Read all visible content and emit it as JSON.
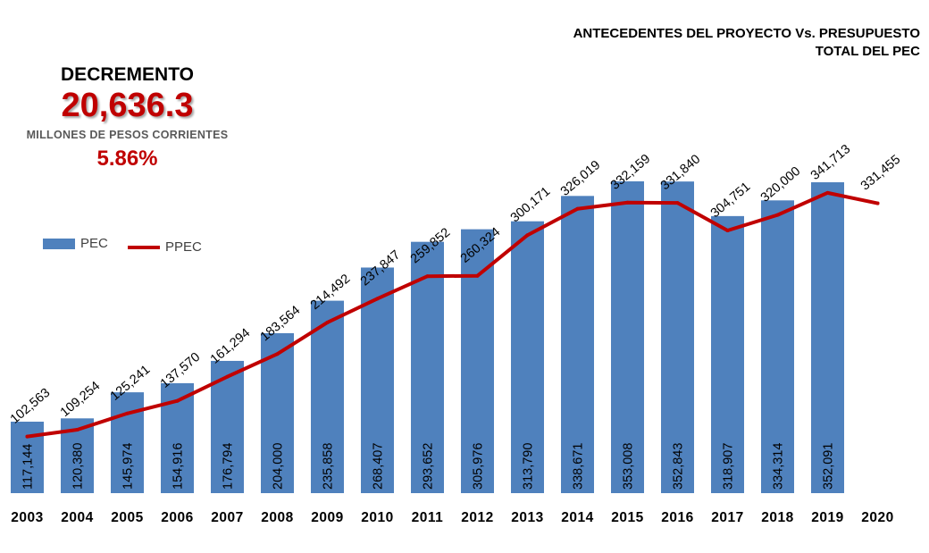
{
  "title_lines": [
    "ANTECEDENTES DEL PROYECTO Vs. PRESUPUESTO",
    "TOTAL DEL PEC"
  ],
  "kpi": {
    "heading": "DECREMENTO",
    "value": "20,636.3",
    "unit": "MILLONES DE PESOS CORRIENTES",
    "percent": "5.86%"
  },
  "colors": {
    "bar": "#4f81bd",
    "line": "#c00000"
  },
  "chart_data": {
    "type": "bar",
    "categories": [
      "2003",
      "2004",
      "2005",
      "2006",
      "2007",
      "2008",
      "2009",
      "2010",
      "2011",
      "2012",
      "2013",
      "2014",
      "2015",
      "2016",
      "2017",
      "2018",
      "2019",
      "2020"
    ],
    "series": [
      {
        "name": "PEC",
        "type": "bar",
        "values": [
          117144,
          120380,
          145974,
          154916,
          176794,
          204000,
          235858,
          268407,
          293652,
          305976,
          313790,
          338671,
          353008,
          352843,
          318907,
          334314,
          352091,
          null
        ],
        "labels": [
          "117,144",
          "120,380",
          "145,974",
          "154,916",
          "176,794",
          "204,000",
          "235,858",
          "268,407",
          "293,652",
          "305,976",
          "313,790",
          "338,671",
          "353,008",
          "352,843",
          "318,907",
          "334,314",
          "352,091",
          ""
        ]
      },
      {
        "name": "PPEC",
        "type": "line",
        "values": [
          102563,
          109254,
          125241,
          137570,
          161294,
          183564,
          214492,
          237847,
          259852,
          260324,
          300171,
          326019,
          332159,
          331840,
          304751,
          320000,
          341713,
          331455
        ],
        "labels": [
          "102,563",
          "109,254",
          "125,241",
          "137,570",
          "161,294",
          "183,564",
          "214,492",
          "237,847",
          "259,852",
          "260,324",
          "300,171",
          "326,019",
          "332,159",
          "331,840",
          "304,751",
          "320,000",
          "341,713",
          "331,455"
        ]
      }
    ],
    "ylim": [
      47000,
      360000
    ],
    "grid": false,
    "legend_position": "left-middle"
  }
}
